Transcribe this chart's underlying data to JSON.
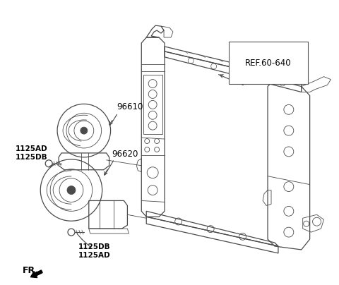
{
  "background_color": "#ffffff",
  "line_color": "#4a4a4a",
  "text_color": "#000000",
  "labels": {
    "ref": "REF.60-640",
    "part1": "96610",
    "part2": "96620",
    "bolt1_top": "1125AD",
    "bolt1_bot": "1125DB",
    "bolt2_top": "1125DB",
    "bolt2_bot": "1125AD",
    "fr": "FR."
  },
  "figsize": [
    4.8,
    4.04
  ],
  "dpi": 100
}
